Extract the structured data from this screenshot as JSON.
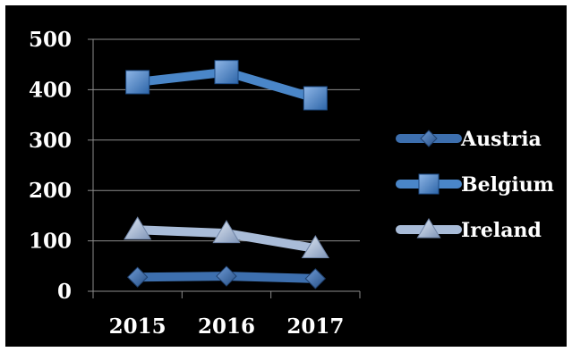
{
  "chart_data": {
    "type": "line",
    "categories": [
      "2015",
      "2016",
      "2017"
    ],
    "ylim": [
      0,
      500
    ],
    "yticks": [
      0,
      100,
      200,
      300,
      400,
      500
    ],
    "grid": true,
    "legend_position": "right",
    "background": "#000000",
    "series": [
      {
        "name": "Austria",
        "values": [
          28,
          30,
          25
        ],
        "color": "#3d6fae",
        "marker": "diamond"
      },
      {
        "name": "Belgium",
        "values": [
          415,
          435,
          383
        ],
        "color": "#4a86c8",
        "marker": "square"
      },
      {
        "name": "Ireland",
        "values": [
          122,
          115,
          85
        ],
        "color": "#a9bcd8",
        "marker": "triangle"
      }
    ]
  }
}
